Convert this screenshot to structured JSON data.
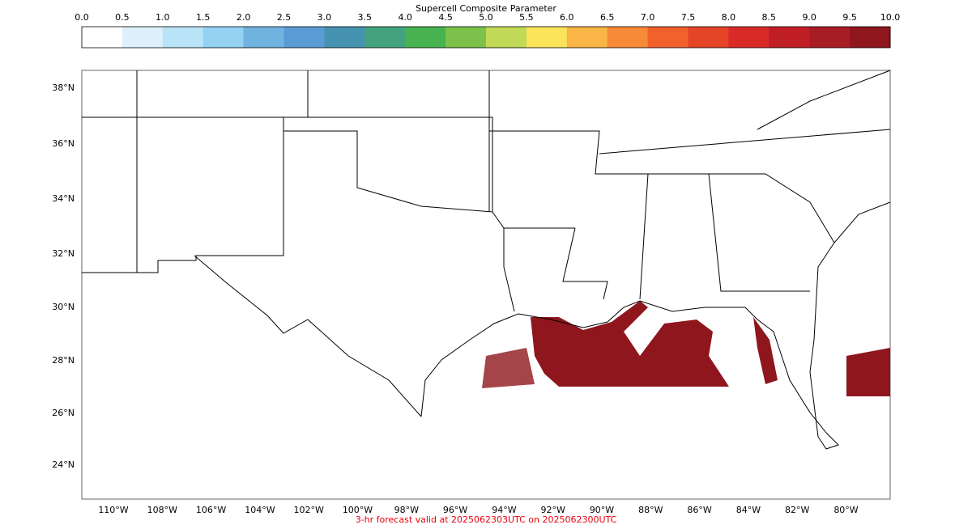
{
  "colorbar": {
    "title": "Supercell Composite Parameter",
    "ticks": [
      "0.0",
      "0.5",
      "1.0",
      "1.5",
      "2.0",
      "2.5",
      "3.0",
      "3.5",
      "4.0",
      "4.5",
      "5.0",
      "5.5",
      "6.0",
      "6.5",
      "7.0",
      "7.5",
      "8.0",
      "8.5",
      "9.0",
      "9.5",
      "10.0"
    ],
    "colors": [
      "#ffffff",
      "#ddf0fb",
      "#b9e3f7",
      "#94d1f2",
      "#70b2e0",
      "#5b9bd5",
      "#4593b1",
      "#44a37e",
      "#46b250",
      "#7cc24a",
      "#c1d957",
      "#fbe35a",
      "#f9b546",
      "#f68a36",
      "#f2602c",
      "#e54427",
      "#d92a28",
      "#c11f26",
      "#a81c23",
      "#8e161c"
    ]
  },
  "map": {
    "lat_labels": [
      "38°N",
      "36°N",
      "34°N",
      "32°N",
      "30°N",
      "28°N",
      "26°N",
      "24°N"
    ],
    "lon_labels": [
      "110°W",
      "108°W",
      "106°W",
      "104°W",
      "102°W",
      "100°W",
      "98°W",
      "96°W",
      "94°W",
      "92°W",
      "90°W",
      "88°W",
      "86°W",
      "84°W",
      "82°W",
      "80°W"
    ]
  },
  "footer": "3-hr forecast valid at 2025062303UTC on 2025062300UTC"
}
